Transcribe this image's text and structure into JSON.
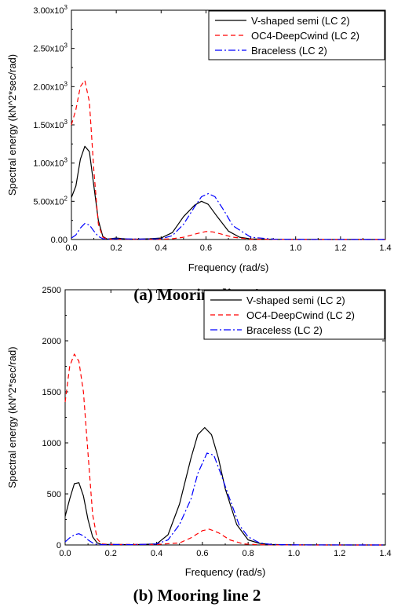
{
  "chart_data": [
    {
      "type": "line",
      "caption": "(a) Mooring line 1",
      "xlabel": "Frequency (rad/s)",
      "ylabel": "Spectral energy (kN^2*sec/rad)",
      "xlim": [
        0.0,
        1.4
      ],
      "ylim": [
        0,
        3000
      ],
      "xticks": [
        "0.0",
        "0.2",
        "0.4",
        "0.6",
        "0.8",
        "1.0",
        "1.2",
        "1.4"
      ],
      "yticks": [
        {
          "value": 0,
          "base": "0.00",
          "exp": ""
        },
        {
          "value": 500,
          "base": "5.00x10",
          "exp": "2"
        },
        {
          "value": 1000,
          "base": "1.00x10",
          "exp": "3"
        },
        {
          "value": 1500,
          "base": "1.50x10",
          "exp": "3"
        },
        {
          "value": 2000,
          "base": "2.00x10",
          "exp": "3"
        },
        {
          "value": 2500,
          "base": "2.50x10",
          "exp": "3"
        },
        {
          "value": 3000,
          "base": "3.00x10",
          "exp": "3"
        }
      ],
      "grid": false,
      "legend_position": "top-right",
      "series": [
        {
          "name": "V-shaped semi (LC 2)",
          "color": "#000000",
          "dash": "solid",
          "x": [
            0.0,
            0.02,
            0.04,
            0.06,
            0.08,
            0.1,
            0.12,
            0.14,
            0.16,
            0.2,
            0.25,
            0.3,
            0.35,
            0.4,
            0.45,
            0.5,
            0.55,
            0.58,
            0.61,
            0.65,
            0.7,
            0.75,
            0.8,
            0.9,
            1.0,
            1.2,
            1.4
          ],
          "values": [
            550,
            700,
            1050,
            1220,
            1150,
            700,
            250,
            40,
            5,
            20,
            5,
            5,
            10,
            20,
            90,
            300,
            450,
            500,
            460,
            300,
            110,
            30,
            8,
            2,
            1,
            0,
            0
          ]
        },
        {
          "name": "OC4-DeepCwind (LC 2)",
          "color": "#ff0000",
          "dash": "dashed",
          "x": [
            0.0,
            0.02,
            0.04,
            0.06,
            0.08,
            0.1,
            0.12,
            0.14,
            0.16,
            0.2,
            0.3,
            0.4,
            0.45,
            0.5,
            0.55,
            0.6,
            0.63,
            0.67,
            0.72,
            0.8,
            0.9,
            1.0,
            1.4
          ],
          "values": [
            1500,
            1700,
            2000,
            2080,
            1800,
            900,
            200,
            30,
            5,
            5,
            3,
            3,
            10,
            30,
            70,
            105,
            100,
            70,
            30,
            5,
            1,
            0,
            0
          ]
        },
        {
          "name": "Braceless (LC 2)",
          "color": "#0000ff",
          "dash": "dashdot",
          "x": [
            0.0,
            0.02,
            0.04,
            0.06,
            0.08,
            0.1,
            0.12,
            0.14,
            0.16,
            0.2,
            0.3,
            0.4,
            0.45,
            0.5,
            0.55,
            0.58,
            0.61,
            0.64,
            0.68,
            0.72,
            0.8,
            0.9,
            1.0,
            1.4
          ],
          "values": [
            20,
            60,
            150,
            210,
            190,
            110,
            40,
            10,
            5,
            10,
            5,
            10,
            50,
            200,
            430,
            560,
            600,
            560,
            380,
            180,
            30,
            5,
            1,
            0
          ]
        }
      ]
    },
    {
      "type": "line",
      "caption": "(b) Mooring line 2",
      "xlabel": "Frequency (rad/s)",
      "ylabel": "Spectral energy (kN^2*sec/rad)",
      "xlim": [
        0.0,
        1.4
      ],
      "ylim": [
        0,
        2500
      ],
      "xticks": [
        "0.0",
        "0.2",
        "0.4",
        "0.6",
        "0.8",
        "1.0",
        "1.2",
        "1.4"
      ],
      "yticks": [
        {
          "value": 0,
          "base": "0",
          "exp": ""
        },
        {
          "value": 500,
          "base": "500",
          "exp": ""
        },
        {
          "value": 1000,
          "base": "1000",
          "exp": ""
        },
        {
          "value": 1500,
          "base": "1500",
          "exp": ""
        },
        {
          "value": 2000,
          "base": "2000",
          "exp": ""
        },
        {
          "value": 2500,
          "base": "2500",
          "exp": ""
        }
      ],
      "grid": false,
      "legend_position": "top-right",
      "series": [
        {
          "name": "V-shaped semi (LC 2)",
          "color": "#000000",
          "dash": "solid",
          "x": [
            0.0,
            0.02,
            0.04,
            0.06,
            0.08,
            0.1,
            0.12,
            0.14,
            0.16,
            0.2,
            0.3,
            0.4,
            0.45,
            0.5,
            0.55,
            0.58,
            0.61,
            0.64,
            0.67,
            0.7,
            0.75,
            0.8,
            0.85,
            0.9,
            1.0,
            1.2,
            1.4
          ],
          "values": [
            280,
            450,
            600,
            610,
            480,
            250,
            80,
            20,
            5,
            5,
            3,
            10,
            100,
            400,
            850,
            1080,
            1150,
            1080,
            850,
            550,
            200,
            50,
            15,
            5,
            1,
            0,
            0
          ]
        },
        {
          "name": "OC4-DeepCwind (LC 2)",
          "color": "#ff0000",
          "dash": "dashed",
          "x": [
            0.0,
            0.02,
            0.04,
            0.06,
            0.08,
            0.1,
            0.12,
            0.14,
            0.16,
            0.2,
            0.3,
            0.4,
            0.5,
            0.55,
            0.6,
            0.63,
            0.67,
            0.72,
            0.78,
            0.85,
            1.0,
            1.4
          ],
          "values": [
            1400,
            1750,
            1870,
            1800,
            1500,
            900,
            300,
            60,
            10,
            5,
            5,
            5,
            20,
            70,
            140,
            155,
            120,
            50,
            10,
            2,
            0,
            0
          ]
        },
        {
          "name": "Braceless (LC 2)",
          "color": "#0000ff",
          "dash": "dashdot",
          "x": [
            0.0,
            0.02,
            0.04,
            0.06,
            0.08,
            0.1,
            0.12,
            0.14,
            0.16,
            0.2,
            0.3,
            0.4,
            0.45,
            0.5,
            0.55,
            0.58,
            0.62,
            0.65,
            0.68,
            0.72,
            0.76,
            0.8,
            0.85,
            0.9,
            1.0,
            1.4
          ],
          "values": [
            30,
            70,
            100,
            110,
            90,
            50,
            20,
            5,
            2,
            5,
            3,
            10,
            50,
            200,
            450,
            700,
            900,
            880,
            700,
            450,
            200,
            80,
            20,
            5,
            1,
            0
          ]
        }
      ]
    }
  ]
}
